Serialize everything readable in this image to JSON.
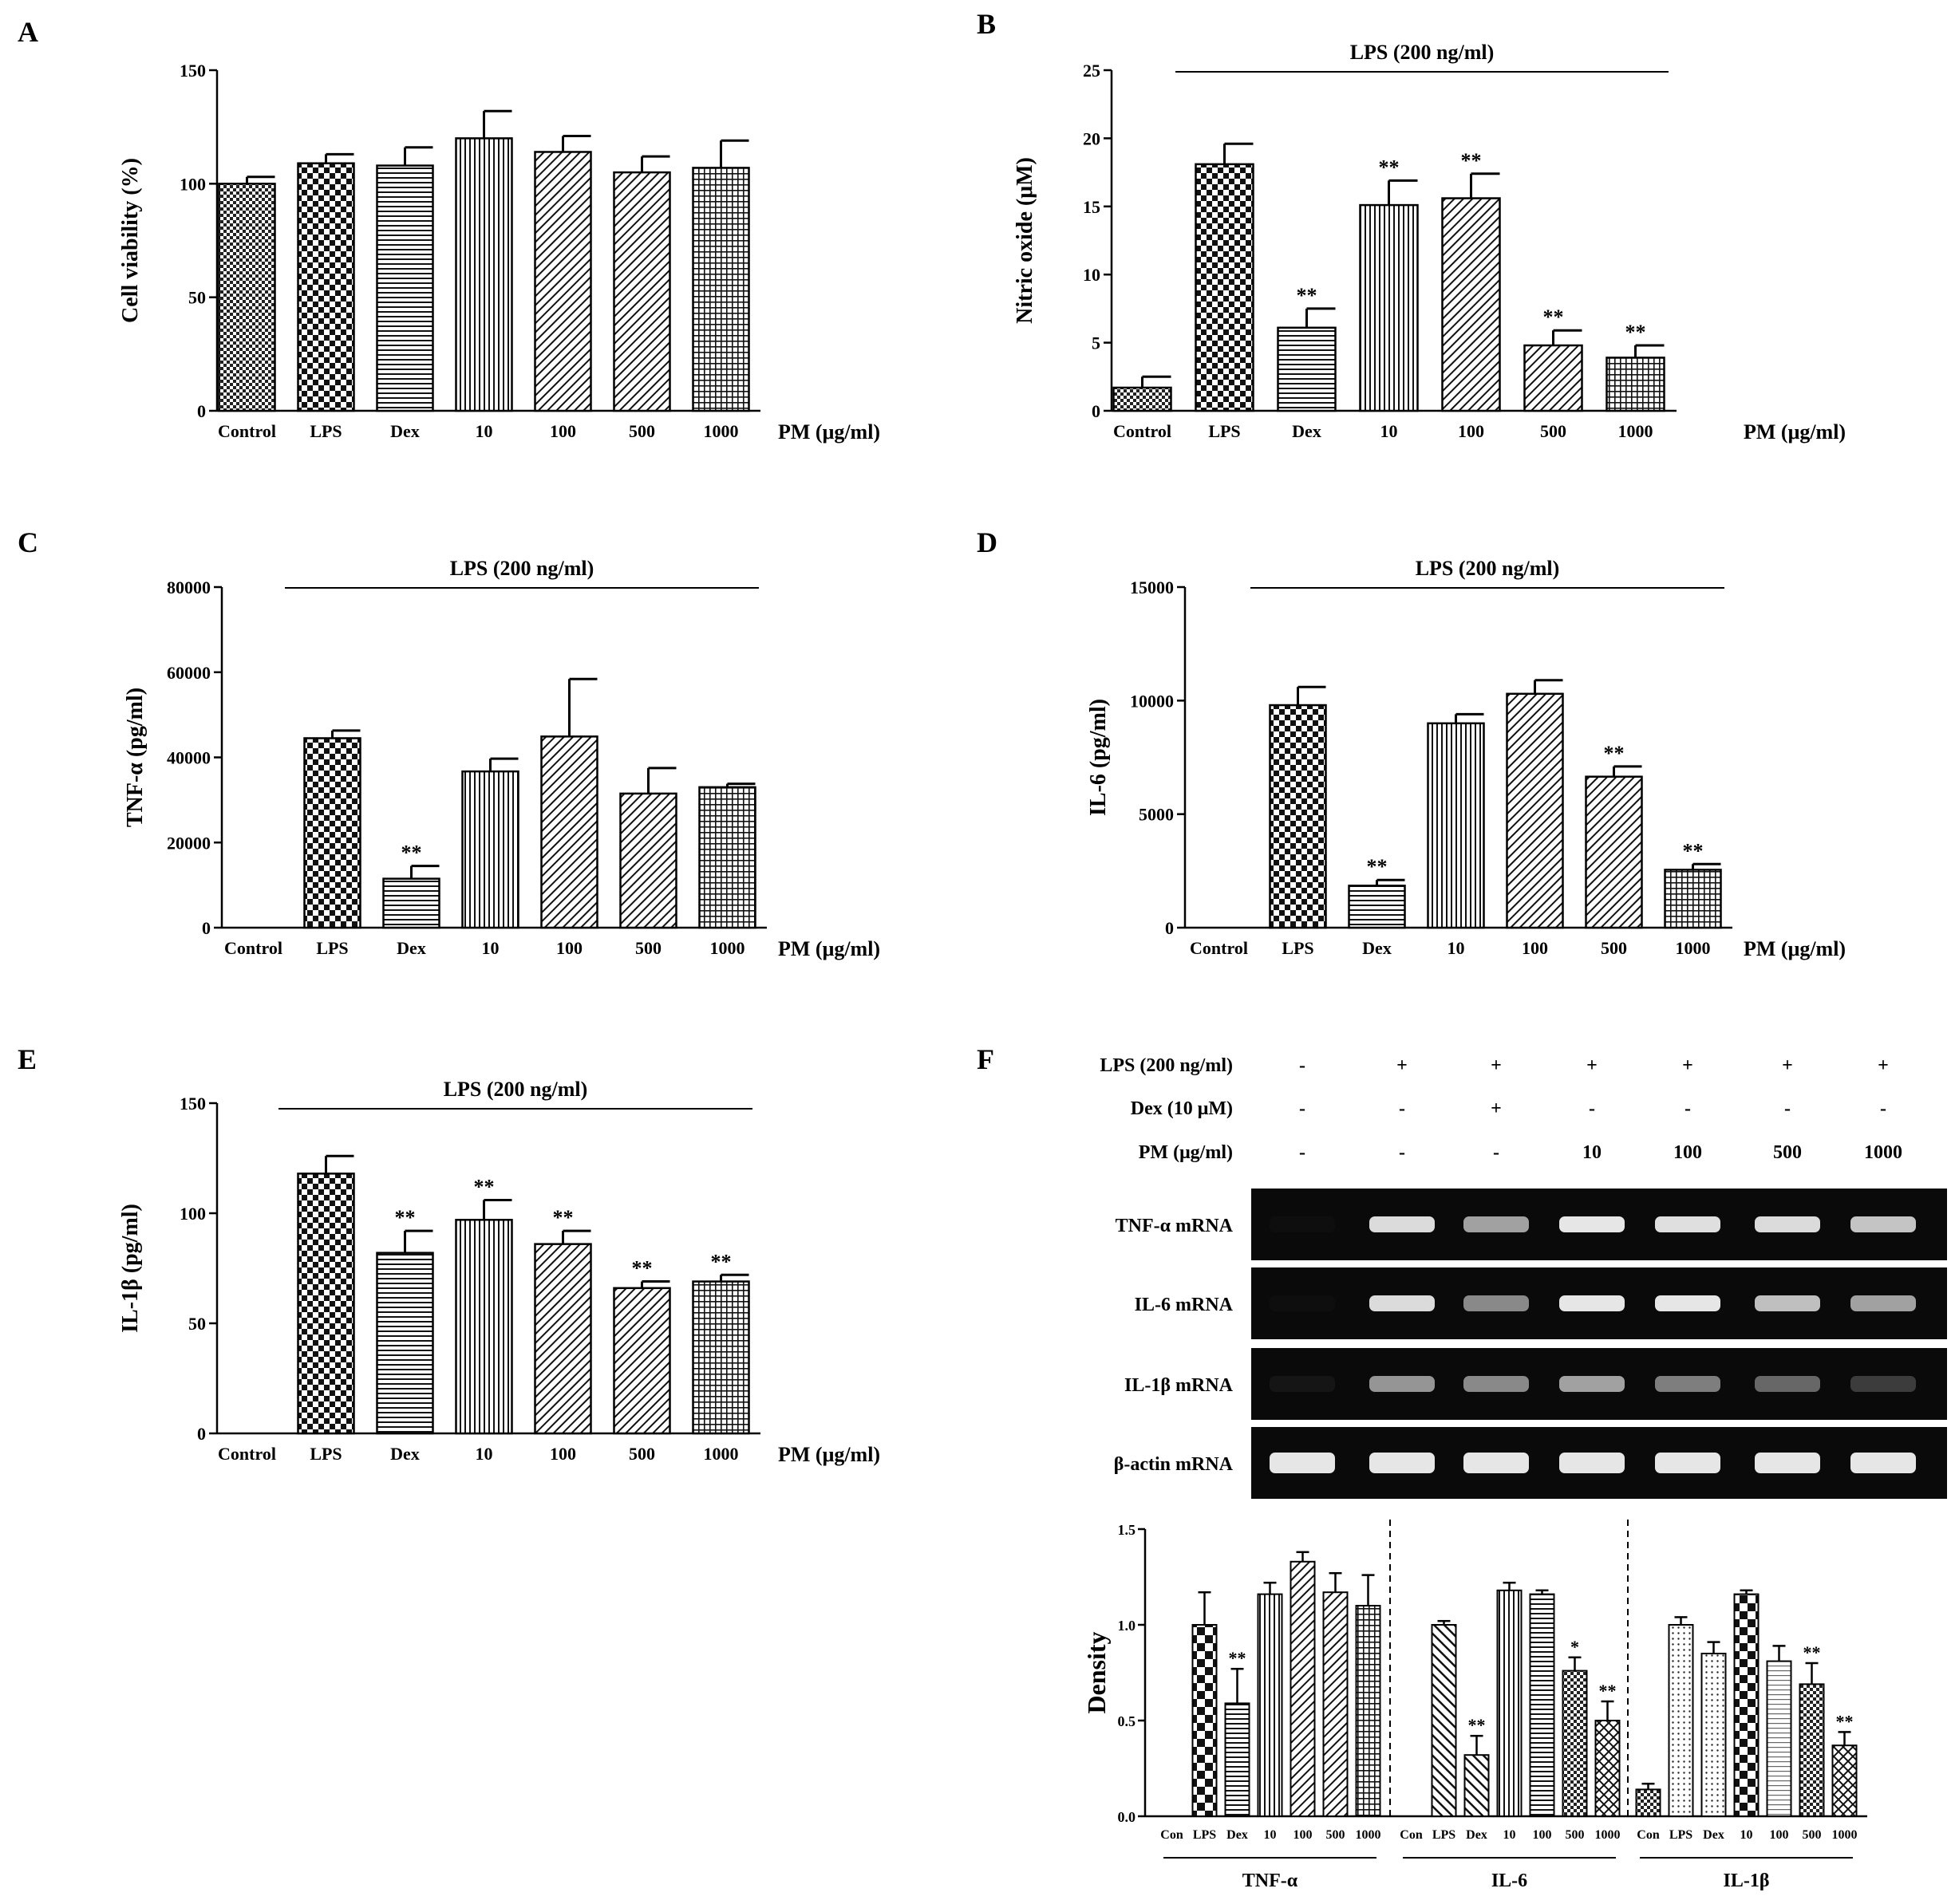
{
  "figure": {
    "panels": [
      "A",
      "B",
      "C",
      "D",
      "E",
      "F"
    ],
    "x_unit_label": "PM (μg/ml)",
    "lps_banner": "LPS (200 ng/ml)"
  },
  "chart_data": [
    {
      "panel": "A",
      "type": "bar",
      "categories": [
        "Control",
        "LPS",
        "Dex",
        "10",
        "100",
        "500",
        "1000"
      ],
      "values": [
        100,
        109,
        108,
        120,
        114,
        105,
        107
      ],
      "errors": [
        3,
        4,
        8,
        12,
        7,
        7,
        12
      ],
      "significance": [
        "",
        "",
        "",
        "",
        "",
        "",
        ""
      ],
      "ylabel": "Cell viability (%)",
      "ylim": [
        0,
        150
      ],
      "yticks": [
        0,
        50,
        100,
        150
      ],
      "x_unit": "PM (μg/ml)",
      "banner": "",
      "patterns": [
        "dense-check",
        "check",
        "hlines",
        "vlines",
        "diag",
        "diag",
        "grid"
      ]
    },
    {
      "panel": "B",
      "type": "bar",
      "categories": [
        "Control",
        "LPS",
        "Dex",
        "10",
        "100",
        "500",
        "1000"
      ],
      "values": [
        1.7,
        18.1,
        6.1,
        15.1,
        15.6,
        4.8,
        3.9
      ],
      "errors": [
        0.8,
        1.5,
        1.4,
        1.8,
        1.8,
        1.1,
        0.9
      ],
      "significance": [
        "",
        "",
        "**",
        "**",
        "**",
        "**",
        "**"
      ],
      "ylabel": "Nitric oxide (μM)",
      "ylim": [
        0,
        25
      ],
      "yticks": [
        0,
        5,
        10,
        15,
        20,
        25
      ],
      "x_unit": "PM (μg/ml)",
      "banner": "LPS (200 ng/ml)",
      "patterns": [
        "dense-check",
        "check",
        "hlines",
        "vlines",
        "diag",
        "diag",
        "grid"
      ]
    },
    {
      "panel": "C",
      "type": "bar",
      "categories": [
        "Control",
        "LPS",
        "Dex",
        "10",
        "100",
        "500",
        "1000"
      ],
      "values": [
        0,
        44500,
        11500,
        36700,
        44900,
        31500,
        33000
      ],
      "errors": [
        0,
        1800,
        3000,
        3000,
        13500,
        6000,
        800
      ],
      "significance": [
        "",
        "",
        "**",
        "",
        "",
        "",
        ""
      ],
      "ylabel": "TNF-α (pg/ml)",
      "ylim": [
        0,
        80000
      ],
      "yticks": [
        0,
        20000,
        40000,
        60000,
        80000
      ],
      "x_unit": "PM (μg/ml)",
      "banner": "LPS (200 ng/ml)",
      "patterns": [
        "dense-check",
        "check",
        "hlines",
        "vlines",
        "diag",
        "diag",
        "grid"
      ]
    },
    {
      "panel": "D",
      "type": "bar",
      "categories": [
        "Control",
        "LPS",
        "Dex",
        "10",
        "100",
        "500",
        "1000"
      ],
      "values": [
        0,
        9800,
        1850,
        9000,
        10300,
        6650,
        2550
      ],
      "errors": [
        0,
        800,
        250,
        400,
        600,
        450,
        250
      ],
      "significance": [
        "",
        "",
        "**",
        "",
        "",
        "**",
        "**"
      ],
      "ylabel": "IL-6 (pg/ml)",
      "ylim": [
        0,
        15000
      ],
      "yticks": [
        0,
        5000,
        10000,
        15000
      ],
      "x_unit": "PM (μg/ml)",
      "banner": "LPS (200 ng/ml)",
      "patterns": [
        "dense-check",
        "check",
        "hlines",
        "vlines",
        "diag",
        "diag",
        "grid"
      ]
    },
    {
      "panel": "E",
      "type": "bar",
      "categories": [
        "Control",
        "LPS",
        "Dex",
        "10",
        "100",
        "500",
        "1000"
      ],
      "values": [
        0,
        118,
        82,
        97,
        86,
        66,
        69
      ],
      "errors": [
        0,
        8,
        10,
        9,
        6,
        3,
        3
      ],
      "significance": [
        "",
        "",
        "**",
        "**",
        "**",
        "**",
        "**"
      ],
      "ylabel": "IL-1β (pg/ml)",
      "ylim": [
        0,
        150
      ],
      "yticks": [
        0,
        50,
        100,
        150
      ],
      "x_unit": "PM (μg/ml)",
      "banner": "LPS (200 ng/ml)",
      "patterns": [
        "dense-check",
        "check",
        "hlines",
        "vlines",
        "diag",
        "diag",
        "grid"
      ]
    },
    {
      "panel": "F",
      "type": "bar",
      "ylabel": "Density",
      "ylim": [
        0,
        1.5
      ],
      "yticks": [
        "0.0",
        "0.5",
        "1.0",
        "1.5"
      ],
      "categories": [
        "Con",
        "LPS",
        "Dex",
        "10",
        "100",
        "500",
        "1000"
      ],
      "series": [
        {
          "name": "TNF-α",
          "values": [
            0,
            1.0,
            0.59,
            1.16,
            1.33,
            1.17,
            1.1
          ],
          "errors": [
            0,
            0.17,
            0.18,
            0.06,
            0.05,
            0.1,
            0.16
          ],
          "significance": [
            "",
            "",
            "**",
            "",
            "",
            "",
            ""
          ]
        },
        {
          "name": "IL-6",
          "values": [
            0,
            1.0,
            0.32,
            1.18,
            1.16,
            0.76,
            0.5
          ],
          "errors": [
            0,
            0.02,
            0.1,
            0.04,
            0.02,
            0.07,
            0.1
          ],
          "significance": [
            "",
            "",
            "**",
            "",
            "",
            "*",
            "**"
          ]
        },
        {
          "name": "IL-1β",
          "values": [
            0.14,
            1.0,
            0.85,
            1.16,
            0.81,
            0.69,
            0.37
          ],
          "errors": [
            0.03,
            0.04,
            0.06,
            0.02,
            0.08,
            0.11,
            0.07
          ],
          "significance": [
            "",
            "",
            "",
            "",
            "",
            "**",
            "**"
          ]
        }
      ]
    }
  ],
  "gel": {
    "conditions": [
      {
        "label": "LPS (200 ng/ml)",
        "values": [
          "-",
          "+",
          "+",
          "+",
          "+",
          "+",
          "+"
        ]
      },
      {
        "label": "Dex (10 μM)",
        "values": [
          "-",
          "-",
          "+",
          "-",
          "-",
          "-",
          "-"
        ]
      },
      {
        "label": "PM (μg/ml)",
        "values": [
          "-",
          "-",
          "-",
          "10",
          "100",
          "500",
          "1000"
        ]
      }
    ],
    "rows": [
      {
        "label": "TNF-α  mRNA",
        "intensity": [
          0.02,
          0.9,
          0.65,
          0.95,
          0.92,
          0.9,
          0.8
        ]
      },
      {
        "label": "IL-6  mRNA",
        "intensity": [
          0.02,
          0.9,
          0.55,
          0.95,
          0.95,
          0.78,
          0.65
        ]
      },
      {
        "label": "IL-1β  mRNA",
        "intensity": [
          0.05,
          0.6,
          0.55,
          0.65,
          0.5,
          0.4,
          0.22
        ]
      },
      {
        "label": "β-actin mRNA",
        "intensity": [
          0.95,
          0.95,
          0.95,
          0.95,
          0.95,
          0.95,
          0.95
        ]
      }
    ]
  }
}
